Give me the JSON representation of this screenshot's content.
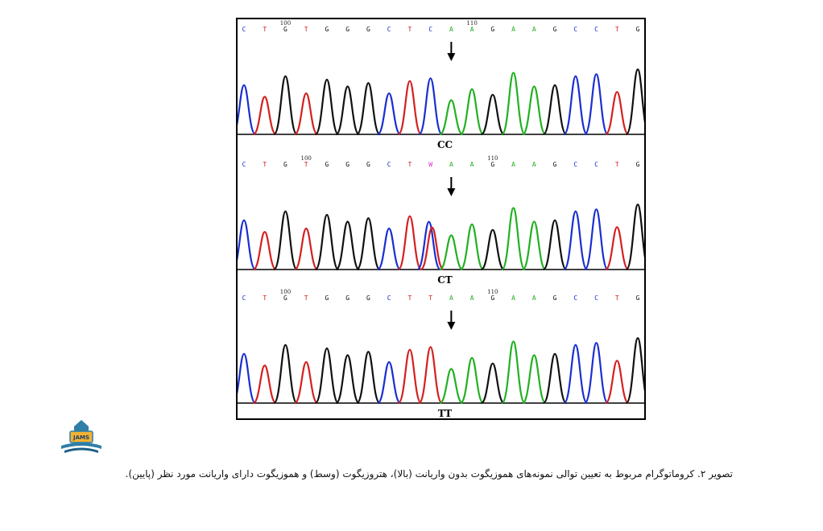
{
  "figure": {
    "panels": [
      {
        "genotype": "CC",
        "sequence": [
          "C",
          "T",
          "G",
          "T",
          "G",
          "G",
          "G",
          "C",
          "T",
          "C",
          "A",
          "A",
          "G",
          "A",
          "A",
          "G",
          "C",
          "C",
          "T",
          "G"
        ],
        "pos_markers": [
          {
            "label": "100",
            "index": 2
          },
          {
            "label": "110",
            "index": 11
          }
        ],
        "arrow_index": 10
      },
      {
        "genotype": "CT",
        "sequence": [
          "C",
          "T",
          "G",
          "T",
          "G",
          "G",
          "G",
          "C",
          "T",
          "W",
          "A",
          "A",
          "G",
          "A",
          "A",
          "G",
          "C",
          "C",
          "T",
          "G"
        ],
        "pos_markers": [
          {
            "label": "100",
            "index": 3
          },
          {
            "label": "110",
            "index": 12
          }
        ],
        "arrow_index": 10
      },
      {
        "genotype": "TT",
        "sequence": [
          "C",
          "T",
          "G",
          "T",
          "G",
          "G",
          "G",
          "C",
          "T",
          "T",
          "A",
          "A",
          "G",
          "A",
          "A",
          "G",
          "C",
          "C",
          "T",
          "G"
        ],
        "pos_markers": [
          {
            "label": "100",
            "index": 2
          },
          {
            "label": "110",
            "index": 12
          }
        ],
        "arrow_index": 10
      }
    ],
    "base_colors": {
      "A": "#22b022",
      "C": "#1a2fd0",
      "G": "#111111",
      "T": "#d42020",
      "W": "#d22fc8"
    }
  },
  "logo": {
    "text": "JAMS"
  },
  "caption": "تصویر ۲. کروماتوگرام مربوط به تعیین توالی نمونه‌های هموزیگوت بدون واریانت (بالا)، هتروزیگوت (وسط) و هموزیگوت دارای واریانت مورد نظر (پایین)."
}
